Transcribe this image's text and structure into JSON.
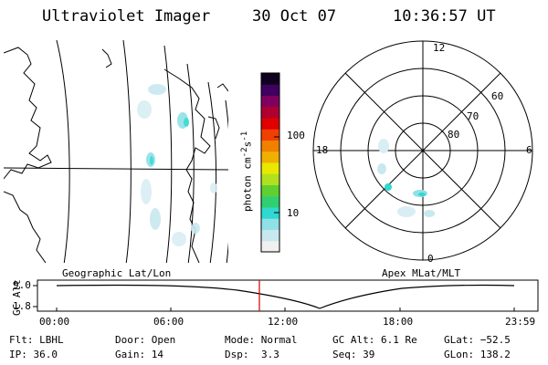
{
  "header": {
    "instrument": "Ultraviolet Imager",
    "date": "30 Oct 07",
    "time": "10:36:57 UT"
  },
  "colorbar": {
    "unit_label": "photon cm",
    "unit_sup1": "-2",
    "unit_mid": "s",
    "unit_sup2": "-1",
    "ticks": [
      "100",
      "10"
    ],
    "scale": "log",
    "colors": [
      "#f0f0f0",
      "#c8e8f0",
      "#90e0e8",
      "#30d8d0",
      "#30d070",
      "#60d030",
      "#b0e020",
      "#e8e800",
      "#f0b000",
      "#f08000",
      "#f04000",
      "#e00000",
      "#b00030",
      "#800060",
      "#400060",
      "#100020"
    ]
  },
  "panels": {
    "geo_label": "Geographic Lat/Lon",
    "polar_label": "Apex MLat/MLT",
    "polar_mlt": {
      "top": "12",
      "left": "18",
      "right": "6",
      "bottom": "0"
    },
    "polar_lat": [
      "60",
      "70",
      "80"
    ]
  },
  "altitude_plot": {
    "y_label": "GC Alt",
    "y_ticks": [
      "9.0",
      "1.8"
    ],
    "x_ticks": [
      "00:00",
      "06:00",
      "12:00",
      "18:00",
      "23:59"
    ],
    "current_time_marker": "10:36:57",
    "marker_color": "#cc0000"
  },
  "footer": {
    "flt": "Flt: LBHL",
    "ip": "IP: 36.0",
    "door": "Door: Open",
    "gain": "Gain: 14",
    "mode": "Mode: Normal",
    "dsp_label": "Dsp:",
    "dsp_value": "3.3",
    "gc_alt": "GC Alt: 6.1 Re",
    "seq": "Seq: 39",
    "glat": "GLat: −52.5",
    "glon": "GLon: 138.2"
  }
}
